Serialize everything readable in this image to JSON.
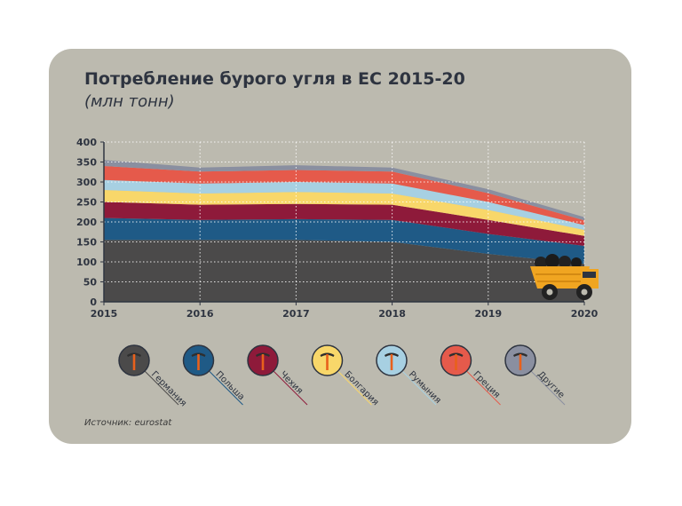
{
  "header": {
    "title": "Потребление бурого угля в ЕС 2015-20",
    "subtitle": "(млн тонн)"
  },
  "footer": {
    "source": "Источник: eurostat"
  },
  "colors": {
    "background": "#bcbaaf",
    "Германия": "#4b4a4a",
    "Польша": "#1f5a86",
    "Чехия": "#8e1a3a",
    "Болгария": "#f8d76a",
    "Румыния": "#a7d0e2",
    "Греция": "#e55a4b",
    "Другие": "#8a8fa0"
  },
  "chart_data": {
    "type": "area",
    "stacked": true,
    "title": "Потребление бурого угля в ЕС 2015-20",
    "subtitle": "(млн тонн)",
    "x": [
      2015,
      2016,
      2017,
      2018,
      2019,
      2020
    ],
    "ylim": [
      0,
      400
    ],
    "yticks": [
      0,
      50,
      100,
      150,
      200,
      250,
      300,
      350,
      400
    ],
    "grid": true,
    "legend_placement": "bottom",
    "series": [
      {
        "name": "Германия",
        "values": [
          155,
          155,
          155,
          150,
          120,
          95
        ]
      },
      {
        "name": "Польша",
        "values": [
          55,
          50,
          52,
          55,
          50,
          45
        ]
      },
      {
        "name": "Чехия",
        "values": [
          40,
          38,
          38,
          38,
          35,
          25
        ]
      },
      {
        "name": "Болгария",
        "values": [
          30,
          28,
          30,
          28,
          25,
          15
        ]
      },
      {
        "name": "Румыния",
        "values": [
          25,
          25,
          25,
          25,
          20,
          12
        ]
      },
      {
        "name": "Греция",
        "values": [
          35,
          30,
          30,
          30,
          22,
          12
        ]
      },
      {
        "name": "Другие",
        "values": [
          15,
          10,
          12,
          10,
          10,
          8
        ]
      }
    ]
  },
  "legend": [
    {
      "label": "Германия",
      "icon": "pickaxe-icon"
    },
    {
      "label": "Польша",
      "icon": "pickaxe-icon"
    },
    {
      "label": "Чехия",
      "icon": "pickaxe-icon"
    },
    {
      "label": "Болгария",
      "icon": "pickaxe-icon"
    },
    {
      "label": "Румыния",
      "icon": "pickaxe-icon"
    },
    {
      "label": "Греция",
      "icon": "pickaxe-icon"
    },
    {
      "label": "Другие",
      "icon": "pickaxe-icon"
    }
  ],
  "illustration": {
    "icon": "dump-truck-icon"
  }
}
